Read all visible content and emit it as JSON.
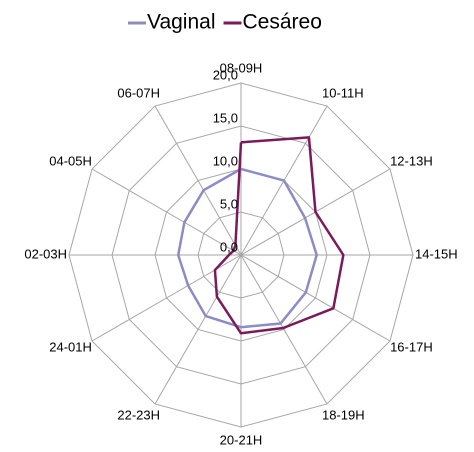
{
  "chart_data": {
    "type": "radar",
    "categories": [
      "08-09H",
      "10-11H",
      "12-13H",
      "14-15H",
      "16-17H",
      "18-19H",
      "20-21H",
      "22-23H",
      "24-01H",
      "02-03H",
      "04-05H",
      "06-07H"
    ],
    "series": [
      {
        "name": "Vaginal",
        "color": "#8c8cc4",
        "values": [
          10,
          10,
          8.6,
          8.8,
          8.7,
          9.2,
          8.4,
          8.2,
          7.1,
          7.3,
          7.6,
          8.7
        ]
      },
      {
        "name": "Cesáreo",
        "color": "#7a1a5b",
        "values": [
          13.1,
          15.8,
          10,
          11.9,
          12.4,
          9.8,
          9.1,
          5.6,
          3.5,
          1.4,
          1.0,
          1.3
        ]
      }
    ],
    "ylim": [
      0,
      20
    ],
    "yticks": [
      {
        "value": 0,
        "label": "0,0"
      },
      {
        "value": 5,
        "label": "5,0"
      },
      {
        "value": 10,
        "label": "10,0"
      },
      {
        "value": 15,
        "label": "15,0"
      },
      {
        "value": 20,
        "label": "20,0"
      }
    ],
    "grid": true,
    "legend": "top"
  }
}
